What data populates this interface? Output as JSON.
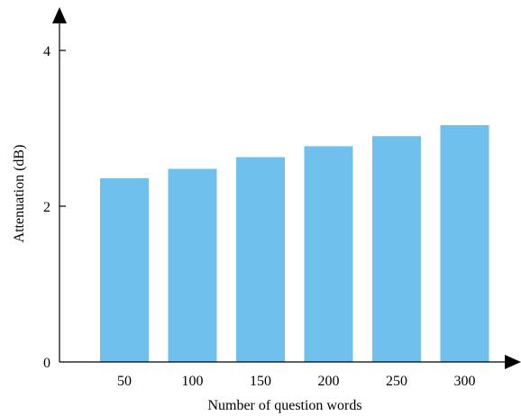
{
  "chart_data": {
    "type": "bar",
    "categories": [
      "50",
      "100",
      "150",
      "200",
      "250",
      "300"
    ],
    "values": [
      2.36,
      2.48,
      2.63,
      2.77,
      2.9,
      3.04
    ],
    "xlabel": "Number of question words",
    "ylabel": "Attenuation (dB)",
    "ylim": [
      0,
      4
    ],
    "yticks": [
      0,
      2,
      4
    ],
    "bar_color": "#6fc0ed",
    "axis_color": "#000000",
    "grid": false,
    "legend": "none"
  }
}
